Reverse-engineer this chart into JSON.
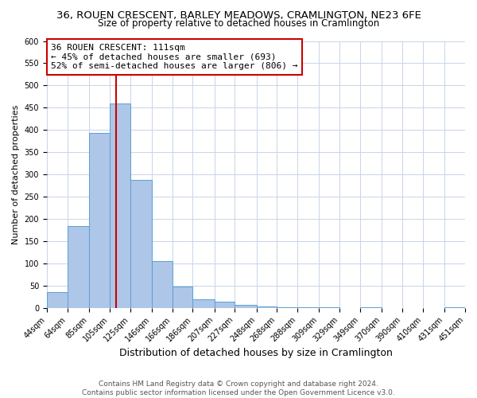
{
  "title": "36, ROUEN CRESCENT, BARLEY MEADOWS, CRAMLINGTON, NE23 6FE",
  "subtitle": "Size of property relative to detached houses in Cramlington",
  "xlabel": "Distribution of detached houses by size in Cramlington",
  "ylabel": "Number of detached properties",
  "bar_color": "#aec6e8",
  "bar_edge_color": "#5a9fd4",
  "bin_edges": [
    44,
    64,
    85,
    105,
    125,
    146,
    166,
    186,
    207,
    227,
    248,
    268,
    288,
    309,
    329,
    349,
    370,
    390,
    410,
    431,
    451
  ],
  "bin_labels": [
    "44sqm",
    "64sqm",
    "85sqm",
    "105sqm",
    "125sqm",
    "146sqm",
    "166sqm",
    "186sqm",
    "207sqm",
    "227sqm",
    "248sqm",
    "268sqm",
    "288sqm",
    "309sqm",
    "329sqm",
    "349sqm",
    "370sqm",
    "390sqm",
    "410sqm",
    "431sqm",
    "451sqm"
  ],
  "counts": [
    35,
    183,
    393,
    460,
    288,
    105,
    48,
    20,
    14,
    7,
    3,
    2,
    1,
    1,
    0,
    1,
    0,
    0,
    0,
    1
  ],
  "vline_x": 111,
  "vline_color": "#cc0000",
  "annotation_title": "36 ROUEN CRESCENT: 111sqm",
  "annotation_line1": "← 45% of detached houses are smaller (693)",
  "annotation_line2": "52% of semi-detached houses are larger (806) →",
  "annotation_box_color": "#ffffff",
  "annotation_box_edge_color": "#cc0000",
  "ylim": [
    0,
    600
  ],
  "yticks": [
    0,
    50,
    100,
    150,
    200,
    250,
    300,
    350,
    400,
    450,
    500,
    550,
    600
  ],
  "background_color": "#ffffff",
  "grid_color": "#c8d4e8",
  "footer_line1": "Contains HM Land Registry data © Crown copyright and database right 2024.",
  "footer_line2": "Contains public sector information licensed under the Open Government Licence v3.0.",
  "title_fontsize": 9.5,
  "subtitle_fontsize": 8.5,
  "xlabel_fontsize": 9,
  "ylabel_fontsize": 8,
  "tick_fontsize": 7,
  "annotation_fontsize": 8,
  "footer_fontsize": 6.5
}
